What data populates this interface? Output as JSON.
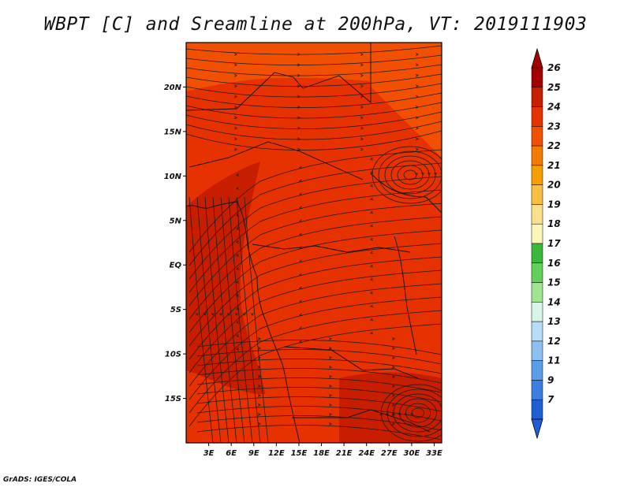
{
  "title": "WBPT [C] and Sreamline at 200hPa, VT: 2019111903",
  "credit": "GrADS: IGES/COLA",
  "map": {
    "lat_labels": [
      "20N",
      "15N",
      "10N",
      "5N",
      "EQ",
      "5S",
      "10S",
      "15S"
    ],
    "lat_values": [
      20,
      15,
      10,
      5,
      0,
      -5,
      -10,
      -15
    ],
    "lon_labels": [
      "3E",
      "6E",
      "9E",
      "12E",
      "15E",
      "18E",
      "21E",
      "24E",
      "27E",
      "30E",
      "33E"
    ],
    "lon_values": [
      3,
      6,
      9,
      12,
      15,
      18,
      21,
      24,
      27,
      30,
      33
    ],
    "lon_range": [
      0,
      34
    ],
    "lat_range": [
      -20,
      25
    ]
  },
  "colorbar": {
    "labels": [
      "26",
      "25",
      "24",
      "23",
      "22",
      "21",
      "20",
      "19",
      "18",
      "17",
      "16",
      "15",
      "14",
      "13",
      "12",
      "11",
      "9",
      "7"
    ],
    "colors": [
      "#a50000",
      "#c81e00",
      "#e63200",
      "#f05000",
      "#f47a00",
      "#f5a000",
      "#f8c040",
      "#fae08a",
      "#fbf5b8",
      "#39b83a",
      "#64cf5a",
      "#9fe48f",
      "#d8f6e8",
      "#b8dcf6",
      "#8cc0f0",
      "#5a9ee6",
      "#3a7fe0",
      "#1f5fd6"
    ]
  },
  "colors": {
    "field_main": "#e63200",
    "field_warm": "#f05000",
    "field_hot": "#c81e00",
    "streamline": "#1a1a1a"
  }
}
